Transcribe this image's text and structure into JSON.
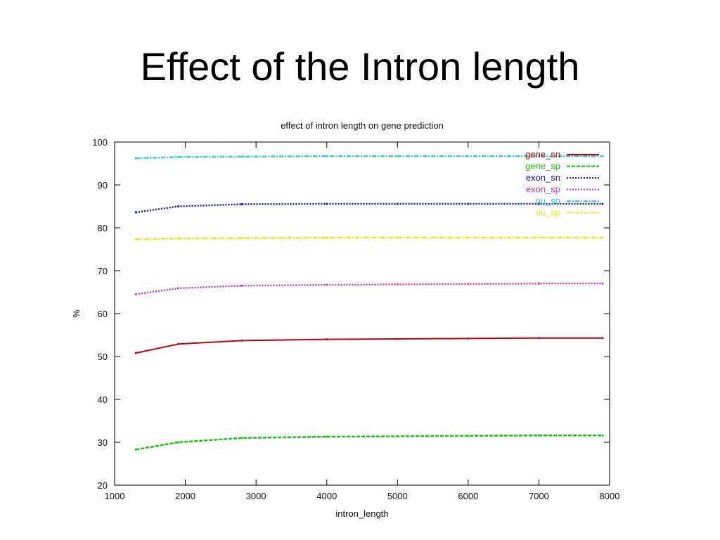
{
  "slide": {
    "title": "Effect of the Intron length"
  },
  "chart_data": {
    "type": "line",
    "title": "effect of intron length on gene prediction",
    "xlabel": "intron_length",
    "ylabel": "%",
    "xlim": [
      1000,
      8000
    ],
    "ylim": [
      20,
      100
    ],
    "xticks": [
      1000,
      2000,
      3000,
      4000,
      5000,
      6000,
      7000,
      8000
    ],
    "yticks": [
      20,
      30,
      40,
      50,
      60,
      70,
      80,
      90,
      100
    ],
    "grid": false,
    "legend_position": "top-right",
    "x": [
      1300,
      1900,
      2800,
      4000,
      5000,
      6000,
      7000,
      7900
    ],
    "series": [
      {
        "name": "gene_sn",
        "color": "#c0000d",
        "dash": "solid",
        "values": [
          50.8,
          52.9,
          53.7,
          54.0,
          54.1,
          54.2,
          54.3,
          54.3
        ]
      },
      {
        "name": "gene_sp",
        "color": "#16c60f",
        "dash": "dashed",
        "values": [
          28.3,
          30.0,
          31.0,
          31.3,
          31.4,
          31.5,
          31.6,
          31.6
        ]
      },
      {
        "name": "exon_sn",
        "color": "#1a1a9c",
        "dash": "dotted",
        "values": [
          83.6,
          85.0,
          85.5,
          85.6,
          85.6,
          85.6,
          85.6,
          85.6
        ]
      },
      {
        "name": "exon_sp",
        "color": "#c23cc0",
        "dash": "dotted",
        "values": [
          64.5,
          65.9,
          66.5,
          66.7,
          66.8,
          66.9,
          67.0,
          67.0
        ]
      },
      {
        "name": "nu_sn",
        "color": "#2ecfd0",
        "dash": "dashdot",
        "values": [
          96.2,
          96.5,
          96.6,
          96.7,
          96.7,
          96.7,
          96.7,
          96.7
        ]
      },
      {
        "name": "nu_sp",
        "color": "#e8e810",
        "dash": "dashdot",
        "values": [
          77.3,
          77.5,
          77.6,
          77.7,
          77.7,
          77.7,
          77.7,
          77.7
        ]
      }
    ]
  }
}
